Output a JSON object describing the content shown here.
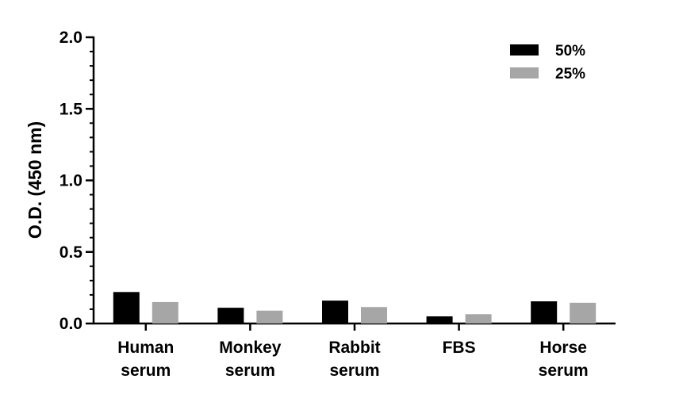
{
  "chart_data": {
    "type": "bar",
    "title": "",
    "xlabel": "",
    "ylabel": "O.D. (450 nm)",
    "ylim": [
      0,
      2.0
    ],
    "yticks": [
      "0.0",
      "0.5",
      "1.0",
      "1.5",
      "2.0"
    ],
    "categories": [
      [
        "Human",
        "serum"
      ],
      [
        "Monkey",
        "serum"
      ],
      [
        "Rabbit",
        "serum"
      ],
      [
        "FBS"
      ],
      [
        "Horse",
        "serum"
      ]
    ],
    "series": [
      {
        "name": "50%",
        "color": "#000000",
        "values": [
          0.22,
          0.11,
          0.16,
          0.05,
          0.155
        ]
      },
      {
        "name": "25%",
        "color": "#a6a6a6",
        "values": [
          0.15,
          0.09,
          0.115,
          0.065,
          0.145
        ]
      }
    ],
    "legend": "top-right",
    "grid": false
  }
}
